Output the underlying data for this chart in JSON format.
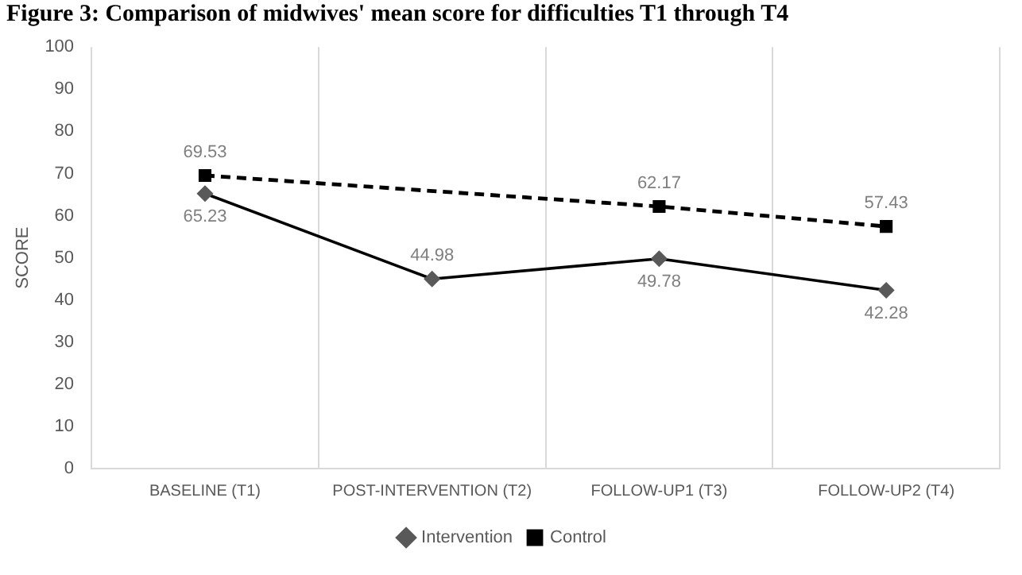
{
  "chart_data": {
    "type": "line",
    "title": "Figure 3: Comparison of midwives' mean score for difficulties T1 through T4",
    "ylabel": "SCORE",
    "categories": [
      "BASELINE (T1)",
      "POST-INTERVENTION (T2)",
      "FOLLOW-UP1 (T3)",
      "FOLLOW-UP2 (T4)"
    ],
    "series": [
      {
        "name": "Intervention",
        "color": "#000000",
        "marker": "diamond",
        "line_style": "solid",
        "values": [
          65.23,
          44.98,
          49.78,
          42.28
        ]
      },
      {
        "name": "Control",
        "color": "#000000",
        "marker": "square",
        "line_style": "dashed",
        "values": [
          69.53,
          null,
          62.17,
          57.43
        ]
      }
    ],
    "ylim": [
      0,
      100
    ],
    "yticks": [
      0,
      10,
      20,
      30,
      40,
      50,
      60,
      70,
      80,
      90,
      100
    ],
    "grid": "x",
    "legend": "bottom",
    "data_labels": true
  }
}
